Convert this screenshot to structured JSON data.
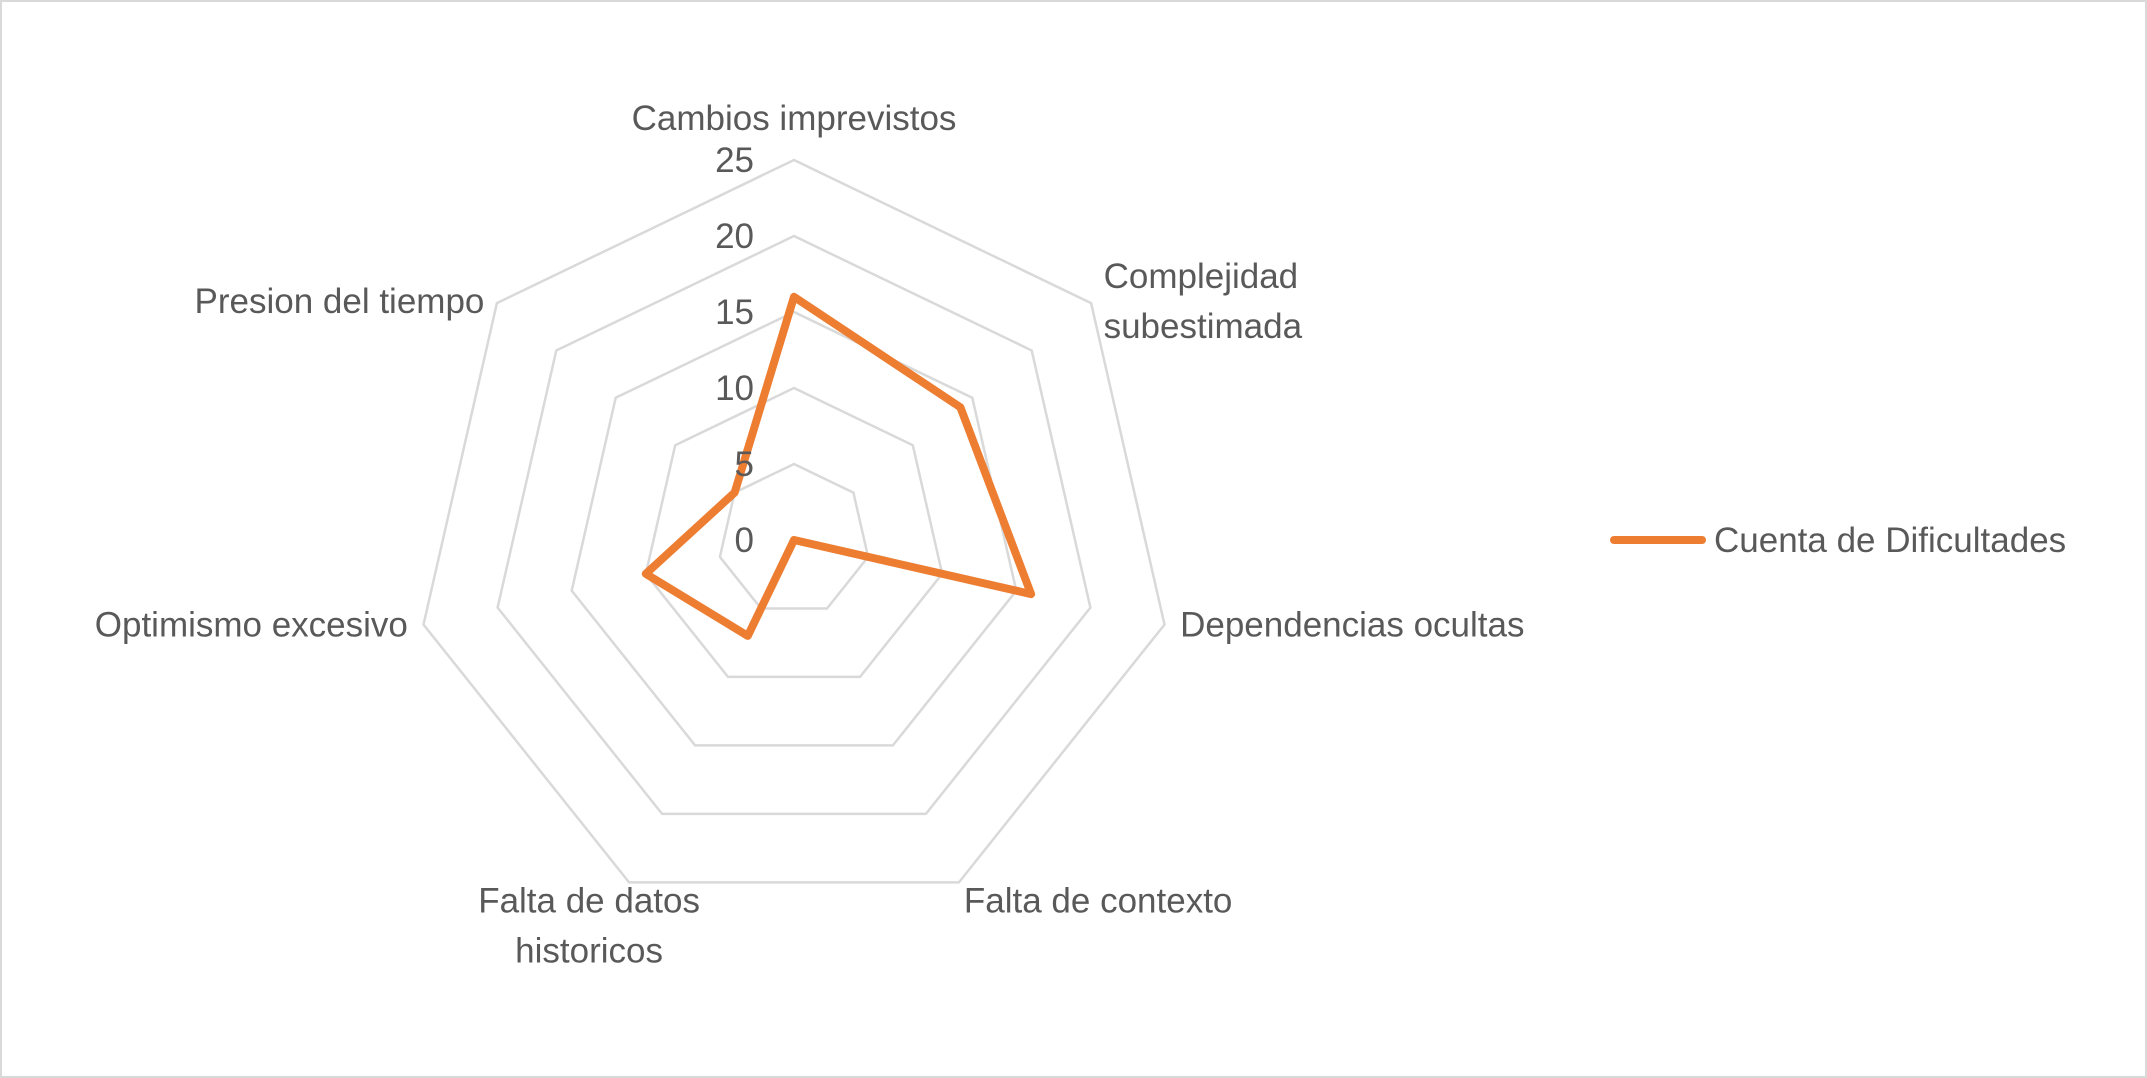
{
  "chart_data": {
    "type": "radar",
    "categories": [
      [
        "Cambios imprevistos"
      ],
      [
        "Complejidad",
        "subestimada"
      ],
      [
        "Dependencias ocultas"
      ],
      [
        "Falta de contexto"
      ],
      [
        "Falta de datos",
        "historicos"
      ],
      [
        "Optimismo excesivo"
      ],
      [
        "Presion del tiempo"
      ]
    ],
    "category_labels": [
      "Cambios imprevistos",
      "Complejidad subestimada",
      "Dependencias ocultas",
      "Falta de contexto",
      "Falta de datos historicos",
      "Optimismo excesivo",
      "Presion del tiempo"
    ],
    "series": [
      {
        "name": "Cuenta de Dificultades",
        "values": [
          16,
          14,
          16,
          0,
          7,
          10,
          5
        ]
      }
    ],
    "rmin": 0,
    "rmax": 25,
    "ticks": [
      0,
      5,
      10,
      15,
      20,
      25
    ],
    "tick_labels": [
      "0",
      "5",
      "10",
      "15",
      "20",
      "25"
    ],
    "grid": true,
    "legend": "right",
    "colors": {
      "series": "#ed7d31",
      "grid": "#d9d9d9",
      "text": "#595959"
    }
  }
}
